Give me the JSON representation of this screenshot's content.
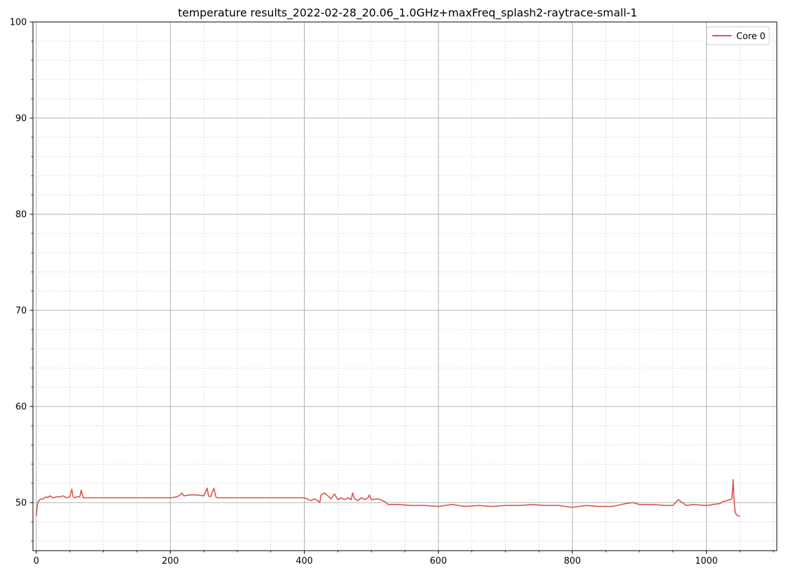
{
  "chart_data": {
    "type": "line",
    "title": "temperature results_2022-02-28_20.06_1.0GHz+maxFreq_splash2-raytrace-small-1",
    "xlabel": "",
    "ylabel": "",
    "xlim": [
      -5,
      1105
    ],
    "ylim": [
      45,
      100
    ],
    "x_ticks": [
      0,
      200,
      400,
      600,
      800,
      1000
    ],
    "x_minor_step": 50,
    "y_ticks": [
      50,
      60,
      70,
      80,
      90,
      100
    ],
    "y_minor_step": 2,
    "grid": true,
    "legend_position": "top-right",
    "series": [
      {
        "name": "Core 0",
        "color": "#d9534f",
        "x": [
          0,
          2,
          5,
          10,
          15,
          17,
          20,
          25,
          30,
          35,
          40,
          45,
          50,
          53,
          55,
          57,
          60,
          65,
          67,
          70,
          80,
          100,
          150,
          200,
          210,
          215,
          217,
          220,
          230,
          240,
          250,
          255,
          257,
          260,
          265,
          268,
          270,
          280,
          300,
          350,
          400,
          410,
          415,
          420,
          423,
          425,
          430,
          435,
          440,
          445,
          450,
          455,
          460,
          465,
          470,
          472,
          475,
          480,
          485,
          490,
          495,
          497,
          500,
          510,
          520,
          525,
          540,
          560,
          580,
          600,
          620,
          640,
          660,
          680,
          700,
          720,
          740,
          760,
          780,
          800,
          820,
          840,
          860,
          880,
          890,
          900,
          920,
          940,
          950,
          958,
          962,
          970,
          980,
          1000,
          1010,
          1020,
          1025,
          1030,
          1035,
          1038,
          1040,
          1041,
          1043,
          1045,
          1048,
          1050
        ],
        "y": [
          48.6,
          50.0,
          50.3,
          50.4,
          50.6,
          50.5,
          50.7,
          50.5,
          50.6,
          50.6,
          50.7,
          50.5,
          50.6,
          51.4,
          50.6,
          50.5,
          50.6,
          50.6,
          51.3,
          50.5,
          50.5,
          50.5,
          50.5,
          50.5,
          50.6,
          50.8,
          51.0,
          50.7,
          50.8,
          50.8,
          50.7,
          51.5,
          50.7,
          50.6,
          51.5,
          50.6,
          50.5,
          50.5,
          50.5,
          50.5,
          50.5,
          50.2,
          50.4,
          50.2,
          50.0,
          50.8,
          51.0,
          50.7,
          50.4,
          50.9,
          50.3,
          50.5,
          50.3,
          50.5,
          50.3,
          51.0,
          50.4,
          50.2,
          50.5,
          50.3,
          50.5,
          50.8,
          50.3,
          50.4,
          50.1,
          49.8,
          49.8,
          49.7,
          49.7,
          49.6,
          49.8,
          49.6,
          49.7,
          49.6,
          49.7,
          49.7,
          49.8,
          49.7,
          49.7,
          49.5,
          49.7,
          49.6,
          49.6,
          49.9,
          50.0,
          49.8,
          49.8,
          49.7,
          49.7,
          50.3,
          50.1,
          49.7,
          49.8,
          49.7,
          49.8,
          49.9,
          50.1,
          50.2,
          50.3,
          50.4,
          52.4,
          50.5,
          49.0,
          48.7,
          48.6,
          48.6
        ]
      }
    ]
  }
}
